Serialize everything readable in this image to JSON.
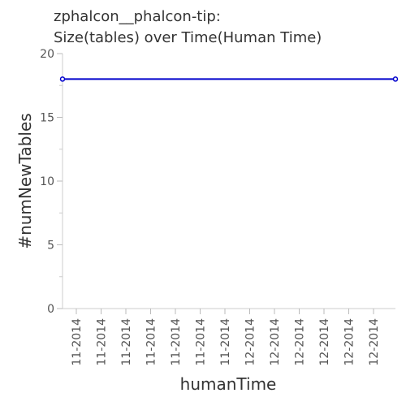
{
  "chart_data": {
    "type": "line",
    "title_line1": "zphalcon__phalcon-tip:",
    "title_line2": "Size(tables) over Time(Human Time)",
    "xlabel": "humanTime",
    "ylabel": "#numNewTables",
    "ylim": [
      0,
      20
    ],
    "y_ticks": [
      0,
      5,
      10,
      15,
      20
    ],
    "x_tick_labels": [
      "11-2014",
      "11-2014",
      "11-2014",
      "11-2014",
      "11-2014",
      "11-2014",
      "11-2014",
      "12-2014",
      "12-2014",
      "12-2014",
      "12-2014",
      "12-2014",
      "12-2014"
    ],
    "grid": false,
    "series": [
      {
        "color": "#0000cc",
        "points": [
          {
            "x": 0,
            "y": 18
          },
          {
            "x": 1,
            "y": 18
          }
        ]
      }
    ]
  }
}
